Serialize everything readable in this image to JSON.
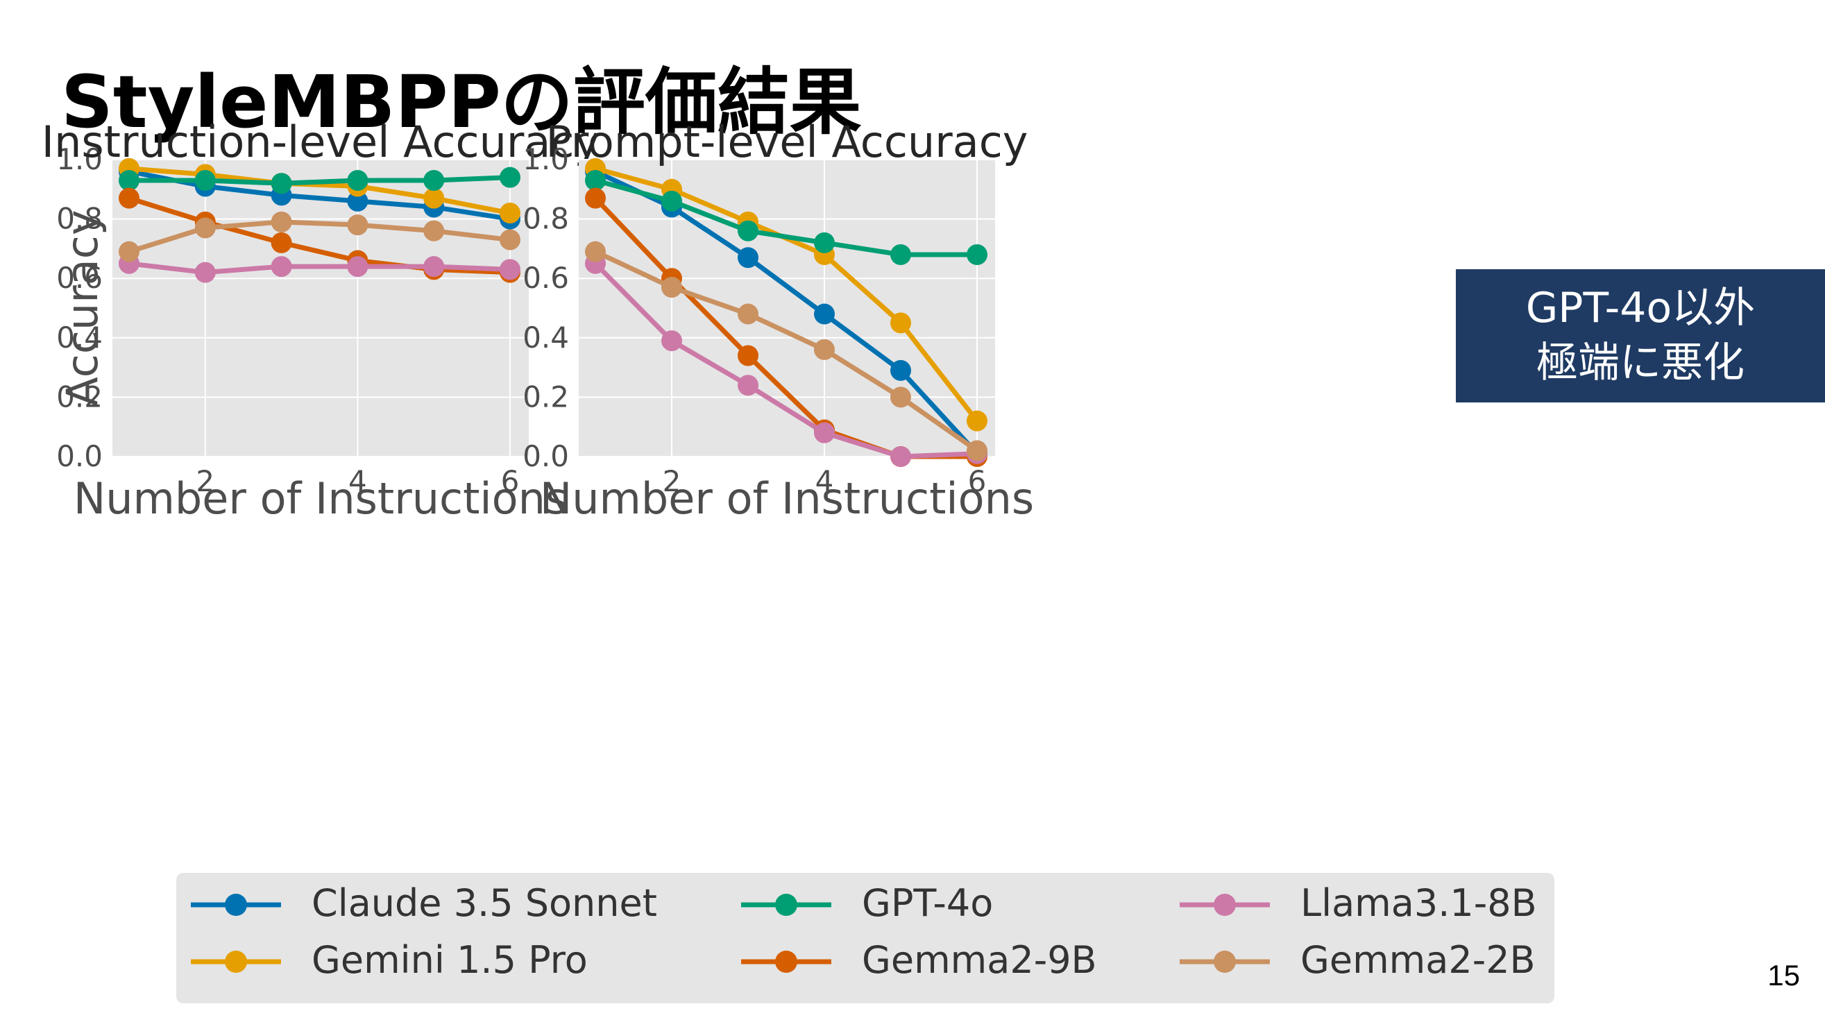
{
  "slide": {
    "title": "StyleMBPPの評価結果",
    "callout_line1": "GPT-4o以外",
    "callout_line2": "極端に悪化",
    "page_number": "15"
  },
  "style": {
    "plot_background": "#e5e5e5",
    "grid_color": "#ffffff",
    "text_color": "#4d4d4d",
    "callout_background": "#1f3b63",
    "legend_background": "#e5e5e5"
  },
  "legend_order": [
    "Claude 3.5 Sonnet",
    "GPT-4o",
    "Llama3.1-8B",
    "Gemini 1.5 Pro",
    "Gemma2-9B",
    "Gemma2-2B"
  ],
  "chart_data": [
    {
      "type": "line",
      "title": "Instruction-level Accuracy",
      "xlabel": "Number of Instructions",
      "ylabel": "Accuracy",
      "xlim": [
        1,
        6
      ],
      "ylim": [
        0.0,
        1.0
      ],
      "xticks": [
        2,
        4,
        6
      ],
      "yticks": [
        "0.0",
        "0.2",
        "0.4",
        "0.6",
        "0.8",
        "1.0"
      ],
      "grid": true,
      "legend": "bottom",
      "x": [
        1,
        2,
        3,
        4,
        5,
        6
      ],
      "series": [
        {
          "name": "Claude 3.5 Sonnet",
          "color": "#0072b2",
          "values": [
            0.96,
            0.91,
            0.88,
            0.86,
            0.84,
            0.8
          ]
        },
        {
          "name": "Gemini 1.5 Pro",
          "color": "#e69f00",
          "values": [
            0.97,
            0.95,
            0.92,
            0.91,
            0.87,
            0.82
          ]
        },
        {
          "name": "GPT-4o",
          "color": "#009e73",
          "values": [
            0.93,
            0.93,
            0.92,
            0.93,
            0.93,
            0.94
          ]
        },
        {
          "name": "Gemma2-9B",
          "color": "#d55e00",
          "values": [
            0.87,
            0.79,
            0.72,
            0.66,
            0.63,
            0.62
          ]
        },
        {
          "name": "Llama3.1-8B",
          "color": "#cc79a7",
          "values": [
            0.65,
            0.62,
            0.64,
            0.64,
            0.64,
            0.63
          ]
        },
        {
          "name": "Gemma2-2B",
          "color": "#ca9161",
          "values": [
            0.69,
            0.77,
            0.79,
            0.78,
            0.76,
            0.73
          ]
        }
      ]
    },
    {
      "type": "line",
      "title": "Prompt-level Accuracy",
      "xlabel": "Number of Instructions",
      "ylabel": "",
      "xlim": [
        1,
        6
      ],
      "ylim": [
        0.0,
        1.0
      ],
      "xticks": [
        2,
        4,
        6
      ],
      "yticks": [
        "0.0",
        "0.2",
        "0.4",
        "0.6",
        "0.8",
        "1.0"
      ],
      "grid": true,
      "legend": "bottom",
      "x": [
        1,
        2,
        3,
        4,
        5,
        6
      ],
      "series": [
        {
          "name": "Claude 3.5 Sonnet",
          "color": "#0072b2",
          "values": [
            0.96,
            0.84,
            0.67,
            0.48,
            0.29,
            0.01
          ]
        },
        {
          "name": "Gemini 1.5 Pro",
          "color": "#e69f00",
          "values": [
            0.97,
            0.9,
            0.79,
            0.68,
            0.45,
            0.12
          ]
        },
        {
          "name": "GPT-4o",
          "color": "#009e73",
          "values": [
            0.93,
            0.86,
            0.76,
            0.72,
            0.68,
            0.68
          ]
        },
        {
          "name": "Gemma2-9B",
          "color": "#d55e00",
          "values": [
            0.87,
            0.6,
            0.34,
            0.09,
            0.0,
            0.0
          ]
        },
        {
          "name": "Llama3.1-8B",
          "color": "#cc79a7",
          "values": [
            0.65,
            0.39,
            0.24,
            0.08,
            0.0,
            0.01
          ]
        },
        {
          "name": "Gemma2-2B",
          "color": "#ca9161",
          "values": [
            0.69,
            0.57,
            0.48,
            0.36,
            0.2,
            0.02
          ]
        }
      ]
    }
  ]
}
